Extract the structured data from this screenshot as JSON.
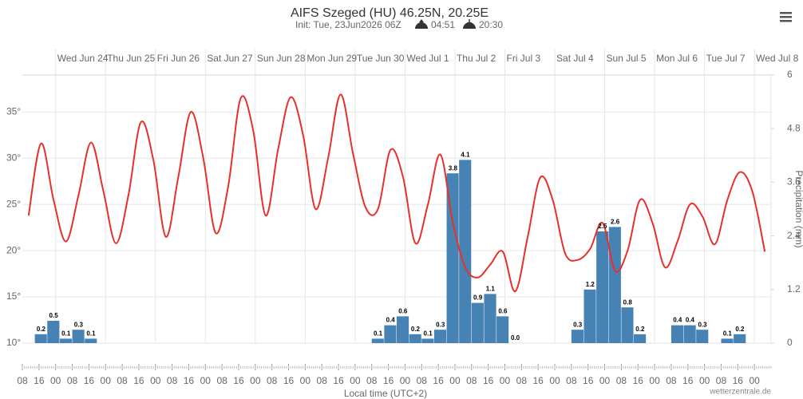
{
  "chart_data": {
    "type": "combo",
    "title": "AIFS Szeged (HU) 46.25N, 20.25E",
    "subtitle": "Init: Tue, 23Jun2026 06Z",
    "sunrise": "04:51",
    "sunset": "20:30",
    "x_label": "Local time (UTC+2)",
    "y2_label": "Precipitation (mm)",
    "credit": "wetterzentrale.de",
    "grid": true,
    "xlim": [
      "2026-06-23T08:00",
      "2026-07-08T08:00"
    ],
    "xticks": [
      {
        "value": "2026-06-23T08:00",
        "label": "08"
      },
      {
        "value": "2026-06-23T16:00",
        "label": "16"
      },
      {
        "value": "2026-06-24T00:00",
        "label": "00"
      },
      {
        "value": "2026-06-24T08:00",
        "label": "08"
      },
      {
        "value": "2026-06-24T16:00",
        "label": "16"
      },
      {
        "value": "2026-06-25T00:00",
        "label": "00"
      },
      {
        "value": "2026-06-25T08:00",
        "label": "08"
      },
      {
        "value": "2026-06-25T16:00",
        "label": "16"
      },
      {
        "value": "2026-06-26T00:00",
        "label": "00"
      },
      {
        "value": "2026-06-26T08:00",
        "label": "08"
      },
      {
        "value": "2026-06-26T16:00",
        "label": "16"
      },
      {
        "value": "2026-06-27T00:00",
        "label": "00"
      },
      {
        "value": "2026-06-27T08:00",
        "label": "08"
      },
      {
        "value": "2026-06-27T16:00",
        "label": "16"
      },
      {
        "value": "2026-06-28T00:00",
        "label": "00"
      },
      {
        "value": "2026-06-28T08:00",
        "label": "08"
      },
      {
        "value": "2026-06-28T16:00",
        "label": "16"
      },
      {
        "value": "2026-06-29T00:00",
        "label": "00"
      },
      {
        "value": "2026-06-29T08:00",
        "label": "08"
      },
      {
        "value": "2026-06-29T16:00",
        "label": "16"
      },
      {
        "value": "2026-06-30T00:00",
        "label": "00"
      },
      {
        "value": "2026-06-30T08:00",
        "label": "08"
      },
      {
        "value": "2026-06-30T16:00",
        "label": "16"
      },
      {
        "value": "2026-07-01T00:00",
        "label": "00"
      },
      {
        "value": "2026-07-01T08:00",
        "label": "08"
      },
      {
        "value": "2026-07-01T16:00",
        "label": "16"
      },
      {
        "value": "2026-07-02T00:00",
        "label": "00"
      },
      {
        "value": "2026-07-02T08:00",
        "label": "08"
      },
      {
        "value": "2026-07-02T16:00",
        "label": "16"
      },
      {
        "value": "2026-07-03T00:00",
        "label": "00"
      },
      {
        "value": "2026-07-03T08:00",
        "label": "08"
      },
      {
        "value": "2026-07-03T16:00",
        "label": "16"
      },
      {
        "value": "2026-07-04T00:00",
        "label": "00"
      },
      {
        "value": "2026-07-04T08:00",
        "label": "08"
      },
      {
        "value": "2026-07-04T16:00",
        "label": "16"
      },
      {
        "value": "2026-07-05T00:00",
        "label": "00"
      },
      {
        "value": "2026-07-05T08:00",
        "label": "08"
      },
      {
        "value": "2026-07-05T16:00",
        "label": "16"
      },
      {
        "value": "2026-07-06T00:00",
        "label": "00"
      },
      {
        "value": "2026-07-06T08:00",
        "label": "08"
      },
      {
        "value": "2026-07-06T16:00",
        "label": "16"
      },
      {
        "value": "2026-07-07T00:00",
        "label": "00"
      },
      {
        "value": "2026-07-07T08:00",
        "label": "08"
      },
      {
        "value": "2026-07-07T16:00",
        "label": "16"
      },
      {
        "value": "2026-07-08T00:00",
        "label": "00"
      }
    ],
    "top_xticks": [
      {
        "value": "2026-06-24T00:00",
        "label": "Wed Jun 24"
      },
      {
        "value": "2026-06-25T00:00",
        "label": "Thu Jun 25"
      },
      {
        "value": "2026-06-26T00:00",
        "label": "Fri Jun 26"
      },
      {
        "value": "2026-06-27T00:00",
        "label": "Sat Jun 27"
      },
      {
        "value": "2026-06-28T00:00",
        "label": "Sun Jun 28"
      },
      {
        "value": "2026-06-29T00:00",
        "label": "Mon Jun 29"
      },
      {
        "value": "2026-06-30T00:00",
        "label": "Tue Jun 30"
      },
      {
        "value": "2026-07-01T00:00",
        "label": "Wed Jul 1"
      },
      {
        "value": "2026-07-02T00:00",
        "label": "Thu Jul 2"
      },
      {
        "value": "2026-07-03T00:00",
        "label": "Fri Jul 3"
      },
      {
        "value": "2026-07-04T00:00",
        "label": "Sat Jul 4"
      },
      {
        "value": "2026-07-05T00:00",
        "label": "Sun Jul 5"
      },
      {
        "value": "2026-07-06T00:00",
        "label": "Mon Jul 6"
      },
      {
        "value": "2026-07-07T00:00",
        "label": "Tue Jul 7"
      },
      {
        "value": "2026-07-08T00:00",
        "label": "Wed Jul 8"
      }
    ],
    "ylim": [
      10,
      39
    ],
    "yticks": [
      {
        "value": 10,
        "label": "10°"
      },
      {
        "value": 15,
        "label": "15°"
      },
      {
        "value": 20,
        "label": "20°"
      },
      {
        "value": 25,
        "label": "25°"
      },
      {
        "value": 30,
        "label": "30°"
      },
      {
        "value": 35,
        "label": "35°"
      }
    ],
    "y2lim": [
      0,
      6
    ],
    "y2ticks": [
      0,
      1.2,
      2.4,
      3.6,
      4.8,
      6
    ],
    "series": [
      {
        "type": "line",
        "color": "#e8302a",
        "x": [
          "2026-06-23T11:00",
          "2026-06-23T17:00",
          "2026-06-23T23:00",
          "2026-06-24T05:00",
          "2026-06-24T11:00",
          "2026-06-24T17:00",
          "2026-06-24T23:00",
          "2026-06-25T05:00",
          "2026-06-25T11:00",
          "2026-06-25T17:00",
          "2026-06-25T23:00",
          "2026-06-26T05:00",
          "2026-06-26T11:00",
          "2026-06-26T17:00",
          "2026-06-26T23:00",
          "2026-06-27T05:00",
          "2026-06-27T11:00",
          "2026-06-27T17:00",
          "2026-06-27T23:00",
          "2026-06-28T05:00",
          "2026-06-28T11:00",
          "2026-06-28T17:00",
          "2026-06-28T23:00",
          "2026-06-29T05:00",
          "2026-06-29T11:00",
          "2026-06-29T17:00",
          "2026-06-29T23:00",
          "2026-06-30T05:00",
          "2026-06-30T11:00",
          "2026-06-30T17:00",
          "2026-06-30T23:00",
          "2026-07-01T05:00",
          "2026-07-01T11:00",
          "2026-07-01T17:00",
          "2026-07-01T23:00",
          "2026-07-02T05:00",
          "2026-07-02T11:00",
          "2026-07-02T17:00",
          "2026-07-02T23:00",
          "2026-07-03T05:00",
          "2026-07-03T11:00",
          "2026-07-03T17:00",
          "2026-07-03T23:00",
          "2026-07-04T05:00",
          "2026-07-04T11:00",
          "2026-07-04T17:00",
          "2026-07-04T23:00",
          "2026-07-05T05:00",
          "2026-07-05T11:00",
          "2026-07-05T17:00",
          "2026-07-05T23:00",
          "2026-07-06T05:00",
          "2026-07-06T11:00",
          "2026-07-06T17:00",
          "2026-07-06T23:00",
          "2026-07-07T05:00",
          "2026-07-07T11:00",
          "2026-07-07T17:00",
          "2026-07-07T23:00",
          "2026-07-08T05:00"
        ],
        "values": [
          23.8,
          31.6,
          25.5,
          21.0,
          26.0,
          31.7,
          26.4,
          20.8,
          26.0,
          33.9,
          29.8,
          21.5,
          28.0,
          35.0,
          30.0,
          21.9,
          27.0,
          36.5,
          33.0,
          23.8,
          31.0,
          36.6,
          32.5,
          24.5,
          30.0,
          36.9,
          30.5,
          24.7,
          24.5,
          30.9,
          28.0,
          20.8,
          25.0,
          30.4,
          23.0,
          18.2,
          17.1,
          18.5,
          19.9,
          15.6,
          21.5,
          27.9,
          25.5,
          19.7,
          19.0,
          20.2,
          23.0,
          17.8,
          20.0,
          25.5,
          23.0,
          18.2,
          21.0,
          25.0,
          23.7,
          20.7,
          25.5,
          28.5,
          26.4,
          19.9
        ]
      },
      {
        "type": "bar",
        "axis": "y2",
        "color": "#4682b4",
        "x": [
          "2026-06-23T14:00",
          "2026-06-23T20:00",
          "2026-06-24T02:00",
          "2026-06-24T08:00",
          "2026-06-24T14:00",
          "2026-06-30T08:00",
          "2026-06-30T14:00",
          "2026-06-30T20:00",
          "2026-07-01T02:00",
          "2026-07-01T08:00",
          "2026-07-01T14:00",
          "2026-07-01T20:00",
          "2026-07-02T02:00",
          "2026-07-02T08:00",
          "2026-07-02T14:00",
          "2026-07-02T20:00",
          "2026-07-03T02:00",
          "2026-07-04T08:00",
          "2026-07-04T14:00",
          "2026-07-04T20:00",
          "2026-07-05T02:00",
          "2026-07-05T08:00",
          "2026-07-05T14:00",
          "2026-07-06T08:00",
          "2026-07-06T14:00",
          "2026-07-06T20:00",
          "2026-07-07T08:00",
          "2026-07-07T14:00"
        ],
        "values": [
          0.2,
          0.5,
          0.1,
          0.3,
          0.1,
          0.1,
          0.4,
          0.6,
          0.2,
          0.1,
          0.3,
          3.8,
          4.1,
          0.9,
          1.1,
          0.6,
          0,
          0.3,
          1.2,
          2.5,
          2.6,
          0.8,
          0.2,
          0.4,
          0.4,
          0.3,
          0.1,
          0.2
        ],
        "value_labels": [
          "0.2",
          "0.5",
          "0.1",
          "0.3",
          "0.1",
          "0.1",
          "0.4",
          "0.6",
          "0.2",
          "0.1",
          "0.3",
          "3.8",
          "4.1",
          "0.9",
          "1.1",
          "0.6",
          "0.0",
          "0.3",
          "1.2",
          "2.5",
          "2.6",
          "0.8",
          "0.2",
          "0.4",
          "0.4",
          "0.3",
          "0.1",
          "0.2"
        ]
      }
    ]
  }
}
